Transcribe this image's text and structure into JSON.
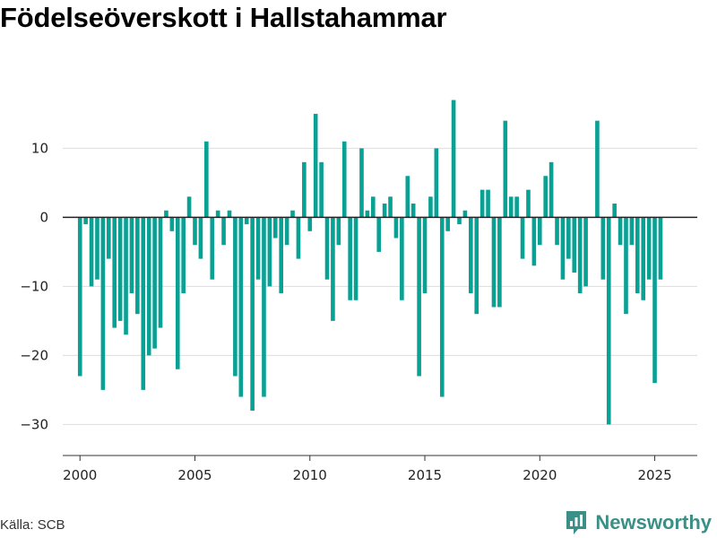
{
  "title": "Födelseöverskott i Hallstahammar",
  "source": "Källa: SCB",
  "brand": "Newsworthy",
  "colors": {
    "bar": "#0aa195",
    "brand": "#3a8f86",
    "grid": "#dddddd"
  },
  "chart_data": {
    "type": "bar",
    "title": "Födelseöverskott i Hallstahammar",
    "xlabel": "",
    "ylabel": "",
    "x_range": [
      1999.25,
      2026.85
    ],
    "ylim": [
      -34.5,
      18.5
    ],
    "x_ticks": [
      2000,
      2005,
      2010,
      2015,
      2020,
      2025
    ],
    "y_ticks": [
      10,
      0,
      -10,
      -20,
      -30
    ],
    "y_tick_labels": [
      "10",
      "0",
      "−10",
      "−20",
      "−30"
    ],
    "grid": true,
    "series": [
      {
        "start_year": 2000,
        "period": "quarter",
        "values": [
          -23,
          -1,
          -10,
          -9,
          -25,
          -6,
          -16,
          -15,
          -17,
          -11,
          -14,
          -25,
          -20,
          -19,
          -16,
          1,
          -2,
          -22,
          -11,
          3,
          -4,
          -6,
          11,
          -9,
          1,
          -4,
          1,
          -23,
          -26,
          -1,
          -28,
          -9,
          -26,
          -10,
          -3,
          -11,
          -4,
          1,
          -6,
          8,
          -2,
          15,
          8,
          -9,
          -15,
          -4,
          11,
          -12,
          -12,
          10,
          1,
          3,
          -5,
          2,
          3,
          -3,
          -12,
          6,
          2,
          -23,
          -11,
          3,
          10,
          -26,
          -2,
          17,
          -1,
          1,
          -11,
          -14,
          4,
          4,
          -13,
          -13,
          14,
          3,
          3,
          -6,
          4,
          -7,
          -4,
          6,
          8,
          -4,
          -9,
          -6,
          -8,
          -11,
          -10,
          0,
          14,
          -9,
          -30,
          2,
          -4,
          -14,
          -4,
          -11,
          -12,
          -9,
          -24,
          -9
        ]
      }
    ]
  }
}
